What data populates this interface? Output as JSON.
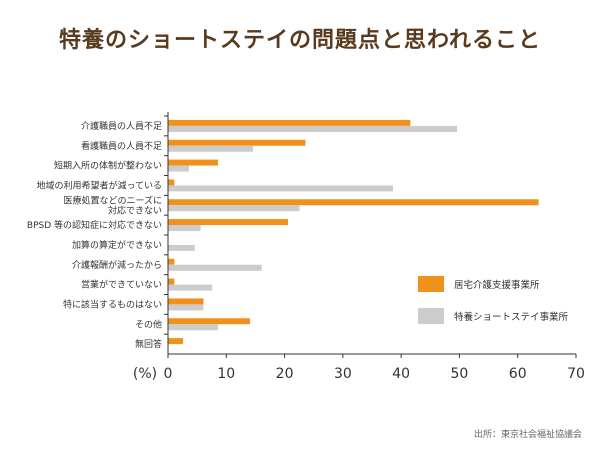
{
  "chart_data": {
    "type": "bar",
    "orientation": "horizontal",
    "title": "特養のショートステイの問題点と思われること",
    "categories": [
      [
        "介護職員の人員不足"
      ],
      [
        "看護職員の人員不足"
      ],
      [
        "短期入所の体制が整わない"
      ],
      [
        "地域の利用希望者が減っている"
      ],
      [
        "医療処置などのニーズに",
        "対応できない"
      ],
      [
        "BPSD 等の認知症に対応できない"
      ],
      [
        "加算の算定ができない"
      ],
      [
        "介護報酬が減ったから"
      ],
      [
        "営業ができていない"
      ],
      [
        "特に該当するものはない"
      ],
      [
        "その他"
      ],
      [
        "無回答"
      ]
    ],
    "series": [
      {
        "name": "居宅介護支援事業所",
        "color": "#f0911c",
        "values": [
          41.5,
          23.5,
          8.5,
          1,
          63.5,
          20.5,
          0,
          1,
          1,
          6,
          14,
          2.5
        ]
      },
      {
        "name": "特養ショートステイ事業所",
        "color": "#cccccc",
        "values": [
          49.5,
          14.5,
          3.5,
          38.5,
          22.5,
          5.5,
          4.5,
          16,
          7.5,
          6,
          8.5,
          0
        ]
      }
    ],
    "xlabel": "(%)",
    "xlim": [
      0,
      70
    ],
    "xticks": [
      0,
      10,
      20,
      30,
      40,
      50,
      60,
      70
    ],
    "legend_position": "right",
    "source": "出所：東京社会福祉協議会"
  }
}
